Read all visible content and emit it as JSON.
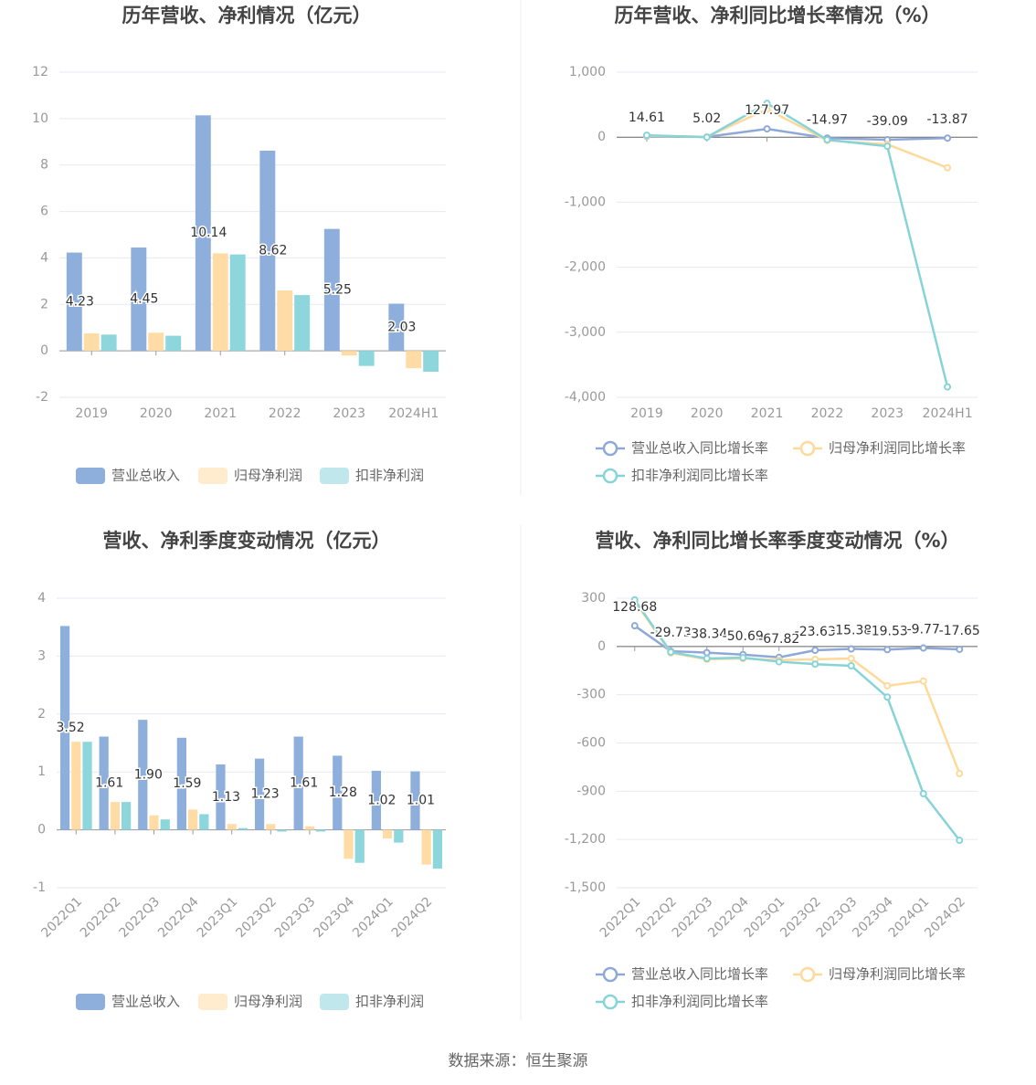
{
  "chart_data": [
    {
      "type": "bar",
      "title": "历年营收、净利情况（亿元）",
      "categories": [
        "2019",
        "2020",
        "2021",
        "2022",
        "2023",
        "2024H1"
      ],
      "series": [
        {
          "name": "营业总收入",
          "color": "#8eaedc",
          "values": [
            4.23,
            4.45,
            10.14,
            8.62,
            5.25,
            2.03
          ],
          "value_labels": [
            "4.23",
            "4.45",
            "10.14",
            "8.62",
            "5.25",
            "2.03"
          ]
        },
        {
          "name": "归母净利润",
          "color": "#ffdca6",
          "values": [
            0.75,
            0.78,
            4.2,
            2.6,
            -0.2,
            -0.75
          ]
        },
        {
          "name": "扣非净利润",
          "color": "#8cd6dc",
          "values": [
            0.7,
            0.65,
            4.15,
            2.4,
            -0.65,
            -0.9
          ]
        }
      ],
      "ylim": [
        -2,
        12
      ],
      "yticks": [
        -2,
        0,
        2,
        4,
        6,
        8,
        10,
        12
      ],
      "grid": true
    },
    {
      "type": "line",
      "title": "历年营收、净利同比增长率情况（%）",
      "categories": [
        "2019",
        "2020",
        "2021",
        "2022",
        "2023",
        "2024H1"
      ],
      "series": [
        {
          "name": "营业总收入同比增长率",
          "color": "#8ea9d8",
          "values": [
            14.61,
            5.02,
            127.97,
            -14.97,
            -39.09,
            -13.87
          ],
          "value_labels": [
            "14.61",
            "5.02",
            "127.97",
            "-14.97",
            "-39.09",
            "-13.87"
          ]
        },
        {
          "name": "归母净利润同比增长率",
          "color": "#ffd99a",
          "values": [
            20,
            5,
            430,
            -50,
            -110,
            -470
          ]
        },
        {
          "name": "扣非净利润同比增长率",
          "color": "#86d4d8",
          "values": [
            30,
            0,
            520,
            -40,
            -140,
            -3840
          ]
        }
      ],
      "ylim": [
        -4000,
        1000
      ],
      "yticks": [
        {
          "value": -4000,
          "label": "-4,000"
        },
        {
          "value": -3000,
          "label": "-3,000"
        },
        {
          "value": -2000,
          "label": "-2,000"
        },
        {
          "value": -1000,
          "label": "-1,000"
        },
        0,
        {
          "value": 1000,
          "label": "1,000"
        }
      ],
      "grid": true
    },
    {
      "type": "bar",
      "title": "营收、净利季度变动情况（亿元）",
      "categories": [
        "2022Q1",
        "2022Q2",
        "2022Q3",
        "2022Q4",
        "2023Q1",
        "2023Q2",
        "2023Q3",
        "2023Q4",
        "2024Q1",
        "2024Q2"
      ],
      "series": [
        {
          "name": "营业总收入",
          "color": "#8eaedc",
          "values": [
            3.52,
            1.61,
            1.9,
            1.59,
            1.13,
            1.23,
            1.61,
            1.28,
            1.02,
            1.01
          ],
          "value_labels": [
            "3.52",
            "1.61",
            "1.90",
            "1.59",
            "1.13",
            "1.23",
            "1.61",
            "1.28",
            "1.02",
            "1.01"
          ]
        },
        {
          "name": "归母净利润",
          "color": "#ffdca6",
          "values": [
            1.52,
            0.48,
            0.25,
            0.35,
            0.1,
            0.1,
            0.06,
            -0.5,
            -0.15,
            -0.6
          ]
        },
        {
          "name": "扣非净利润",
          "color": "#8cd6dc",
          "values": [
            1.52,
            0.48,
            0.18,
            0.27,
            0.03,
            -0.03,
            -0.03,
            -0.57,
            -0.22,
            -0.67
          ]
        }
      ],
      "ylim": [
        -1,
        4
      ],
      "yticks": [
        -1,
        0,
        1,
        2,
        3,
        4
      ],
      "grid": true
    },
    {
      "type": "line",
      "title": "营收、净利同比增长率季度变动情况（%）",
      "categories": [
        "2022Q1",
        "2022Q2",
        "2022Q3",
        "2022Q4",
        "2023Q1",
        "2023Q2",
        "2023Q3",
        "2023Q4",
        "2024Q1",
        "2024Q2"
      ],
      "series": [
        {
          "name": "营业总收入同比增长率",
          "color": "#8ea9d8",
          "values": [
            128.68,
            -29.73,
            -38.34,
            -50.69,
            -67.82,
            -23.63,
            -15.38,
            -19.53,
            -9.77,
            -17.65
          ],
          "value_labels": [
            "128.68",
            "-29.73",
            "-38.34",
            "-50.69",
            "-67.82",
            "-23.63",
            "-15.38",
            "-19.53",
            "-9.77",
            "-17.65"
          ]
        },
        {
          "name": "归母净利润同比增长率",
          "color": "#ffd99a",
          "values": [
            280,
            -40,
            -80,
            -75,
            -85,
            -80,
            -75,
            -245,
            -215,
            -790
          ]
        },
        {
          "name": "扣非净利润同比增长率",
          "color": "#86d4d8",
          "values": [
            290,
            -35,
            -75,
            -70,
            -95,
            -110,
            -120,
            -315,
            -915,
            -1205
          ]
        }
      ],
      "ylim": [
        -1500,
        300
      ],
      "yticks": [
        {
          "value": -1500,
          "label": "-1,500"
        },
        {
          "value": -1200,
          "label": "-1,200"
        },
        -900,
        -600,
        -300,
        0,
        300
      ],
      "grid": true
    }
  ],
  "source": "数据来源：恒生聚源"
}
